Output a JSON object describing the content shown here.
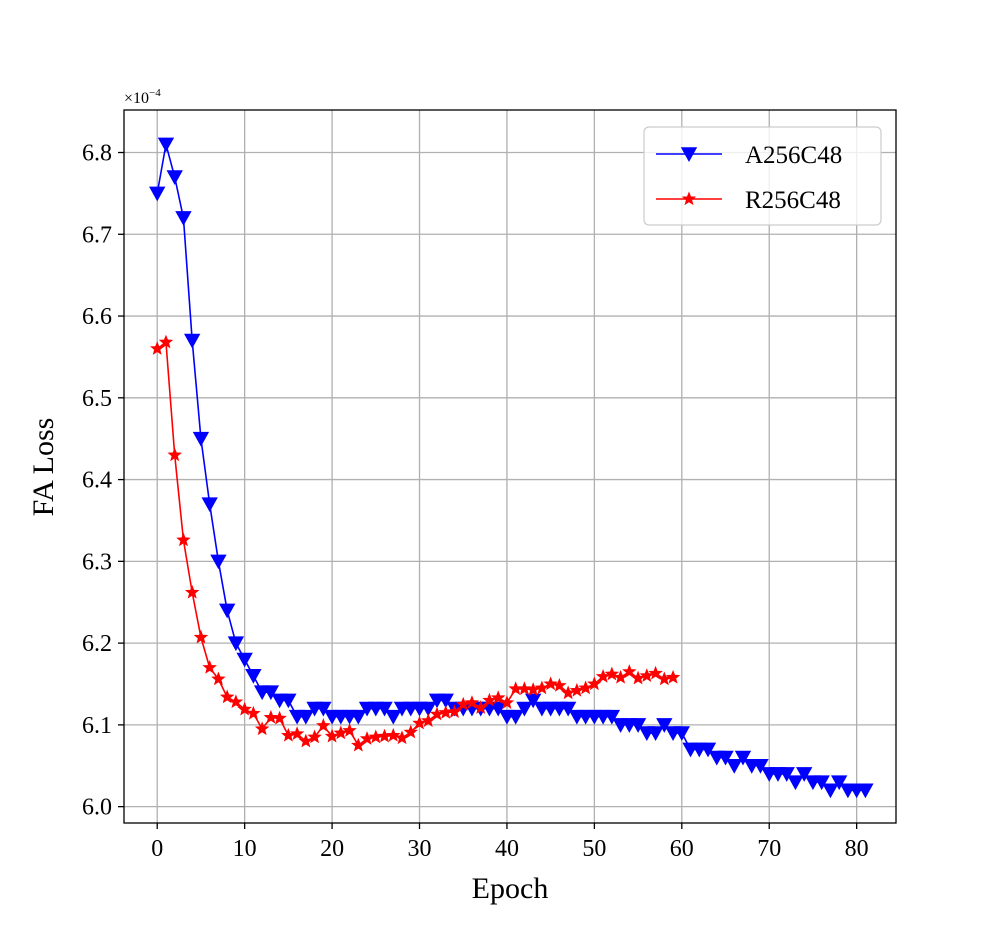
{
  "chart_data": {
    "type": "line",
    "xlabel": "Epoch",
    "ylabel": "FA Loss",
    "y_multiplier": {
      "base": "×10",
      "exponent": "−4"
    },
    "xlim": [
      -3.8,
      84.5
    ],
    "ylim": [
      5.98,
      6.852
    ],
    "x_ticks": [
      0,
      10,
      20,
      30,
      40,
      50,
      60,
      70,
      80
    ],
    "x_tick_labels": [
      "0",
      "10",
      "20",
      "30",
      "40",
      "50",
      "60",
      "70",
      "80"
    ],
    "y_ticks": [
      6.0,
      6.1,
      6.2,
      6.3,
      6.4,
      6.5,
      6.6,
      6.7,
      6.8
    ],
    "y_tick_labels": [
      "6.0",
      "6.1",
      "6.2",
      "6.3",
      "6.4",
      "6.5",
      "6.6",
      "6.7",
      "6.8"
    ],
    "grid": true,
    "legend_position": "top-right",
    "series": [
      {
        "name": "A256C48",
        "color": "#0000ff",
        "marker": "triangle-down",
        "x": [
          0,
          1,
          2,
          3,
          4,
          5,
          6,
          7,
          8,
          9,
          10,
          11,
          12,
          13,
          14,
          15,
          16,
          17,
          18,
          19,
          20,
          21,
          22,
          23,
          24,
          25,
          26,
          27,
          28,
          29,
          30,
          31,
          32,
          33,
          34,
          35,
          36,
          37,
          38,
          39,
          40,
          41,
          42,
          43,
          44,
          45,
          46,
          47,
          48,
          49,
          50,
          51,
          52,
          53,
          54,
          55,
          56,
          57,
          58,
          59,
          60,
          61,
          62,
          63,
          64,
          65,
          66,
          67,
          68,
          69,
          70,
          71,
          72,
          73,
          74,
          75,
          76,
          77,
          78,
          79,
          80,
          81
        ],
        "values": [
          6.75,
          6.81,
          6.77,
          6.72,
          6.57,
          6.45,
          6.37,
          6.3,
          6.24,
          6.2,
          6.18,
          6.16,
          6.14,
          6.14,
          6.13,
          6.13,
          6.11,
          6.11,
          6.12,
          6.12,
          6.11,
          6.11,
          6.11,
          6.11,
          6.12,
          6.12,
          6.12,
          6.11,
          6.12,
          6.12,
          6.12,
          6.12,
          6.13,
          6.13,
          6.12,
          6.12,
          6.12,
          6.12,
          6.12,
          6.12,
          6.11,
          6.11,
          6.12,
          6.13,
          6.12,
          6.12,
          6.12,
          6.12,
          6.11,
          6.11,
          6.11,
          6.11,
          6.11,
          6.1,
          6.1,
          6.1,
          6.09,
          6.09,
          6.1,
          6.09,
          6.09,
          6.07,
          6.07,
          6.07,
          6.06,
          6.06,
          6.05,
          6.06,
          6.05,
          6.05,
          6.04,
          6.04,
          6.04,
          6.03,
          6.04,
          6.03,
          6.03,
          6.02,
          6.03,
          6.02,
          6.02,
          6.02
        ]
      },
      {
        "name": "R256C48",
        "color": "#ff0000",
        "marker": "star",
        "x": [
          0,
          1,
          2,
          3,
          4,
          5,
          6,
          7,
          8,
          9,
          10,
          11,
          12,
          13,
          14,
          15,
          16,
          17,
          18,
          19,
          20,
          21,
          22,
          23,
          24,
          25,
          26,
          27,
          28,
          29,
          30,
          31,
          32,
          33,
          34,
          35,
          36,
          37,
          38,
          39,
          40,
          41,
          42,
          43,
          44,
          45,
          46,
          47,
          48,
          49,
          50,
          51,
          52,
          53,
          54,
          55,
          56,
          57,
          58,
          59
        ],
        "values": [
          6.56,
          6.568,
          6.43,
          6.326,
          6.262,
          6.207,
          6.17,
          6.156,
          6.134,
          6.128,
          6.119,
          6.114,
          6.095,
          6.109,
          6.108,
          6.087,
          6.089,
          6.08,
          6.085,
          6.099,
          6.086,
          6.09,
          6.093,
          6.075,
          6.083,
          6.085,
          6.086,
          6.087,
          6.084,
          6.091,
          6.102,
          6.105,
          6.113,
          6.115,
          6.116,
          6.125,
          6.127,
          6.121,
          6.13,
          6.133,
          6.127,
          6.144,
          6.144,
          6.143,
          6.145,
          6.15,
          6.148,
          6.139,
          6.142,
          6.145,
          6.15,
          6.159,
          6.162,
          6.158,
          6.165,
          6.157,
          6.16,
          6.163,
          6.156,
          6.158
        ]
      }
    ]
  }
}
